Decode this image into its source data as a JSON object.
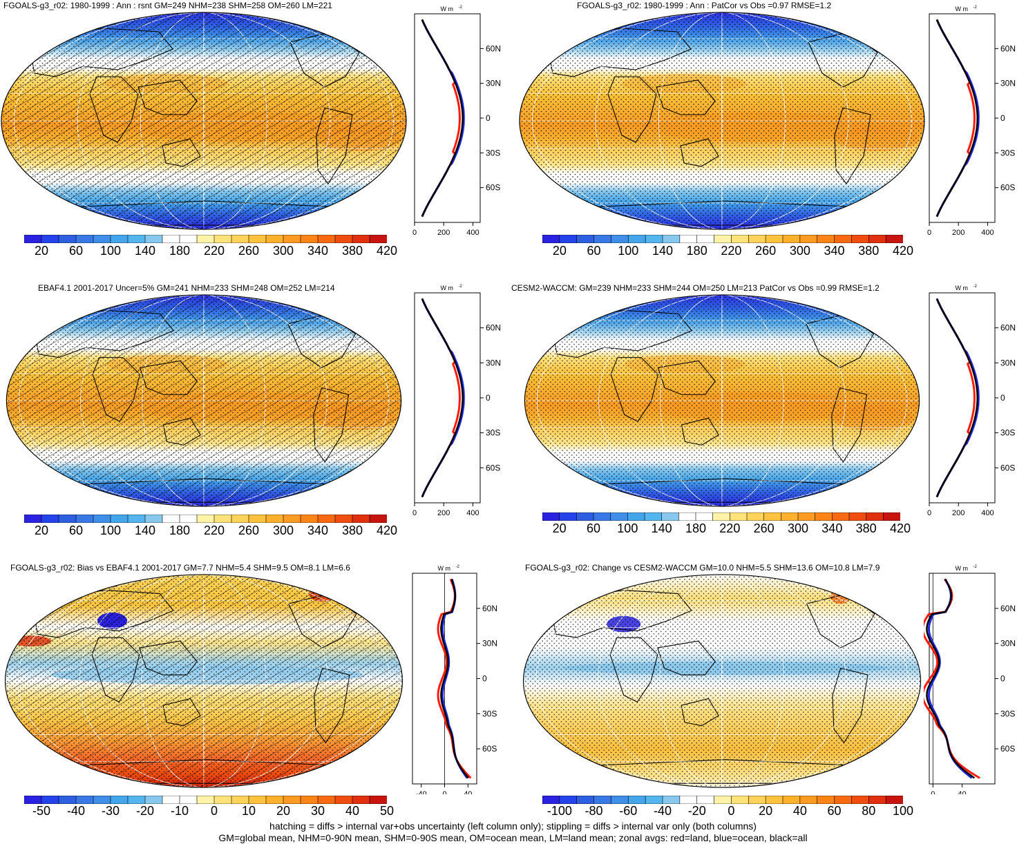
{
  "panels": [
    {
      "title": "FGOALS-g3_r02: 1980-1999 : Ann : rsnt GM=249 NHM=238 SHM=258 OM=260 LM=221",
      "kind": "clim",
      "hatch": true,
      "colorbar": {
        "labels": [
          "20",
          "60",
          "100",
          "140",
          "180",
          "220",
          "260",
          "300",
          "340",
          "380",
          "420"
        ]
      },
      "zonal": {
        "unit": "W m",
        "unit_sup": "-2",
        "xticks": [
          "0",
          "200",
          "400"
        ],
        "yticks": [
          "60N",
          "30N",
          "0",
          "30S",
          "60S"
        ]
      }
    },
    {
      "title": "FGOALS-g3_r02: 1980-1999 : Ann : PatCor vs Obs =0.97 RMSE=1.2",
      "kind": "clim",
      "hatch": false,
      "colorbar": {
        "labels": [
          "20",
          "60",
          "100",
          "140",
          "180",
          "220",
          "260",
          "300",
          "340",
          "380",
          "420"
        ]
      },
      "zonal": {
        "unit": "W m",
        "unit_sup": "-2",
        "xticks": [
          "0",
          "200",
          "400"
        ],
        "yticks": [
          "60N",
          "30N",
          "0",
          "30S",
          "60S"
        ]
      }
    },
    {
      "title": "EBAF4.1 2001-2017 Uncer=5% GM=241 NHM=233 SHM=248 OM=252 LM=214",
      "kind": "clim",
      "hatch": true,
      "colorbar": {
        "labels": [
          "20",
          "60",
          "100",
          "140",
          "180",
          "220",
          "260",
          "300",
          "340",
          "380",
          "420"
        ]
      },
      "zonal": {
        "unit": "W m",
        "unit_sup": "-2",
        "xticks": [
          "0",
          "200",
          "400"
        ],
        "yticks": [
          "60N",
          "30N",
          "0",
          "30S",
          "60S"
        ]
      }
    },
    {
      "title": "CESM2-WACCM: GM=239 NHM=233 SHM=244 OM=250 LM=213 PatCor vs Obs =0.99 RMSE=1.2",
      "kind": "clim",
      "hatch": false,
      "colorbar": {
        "labels": [
          "20",
          "60",
          "100",
          "140",
          "180",
          "220",
          "260",
          "300",
          "340",
          "380",
          "420"
        ]
      },
      "zonal": {
        "unit": "W m",
        "unit_sup": "-2",
        "xticks": [
          "0",
          "200",
          "400"
        ],
        "yticks": [
          "60N",
          "30N",
          "0",
          "30S",
          "60S"
        ]
      }
    },
    {
      "title": "FGOALS-g3_r02: Bias vs EBAF4.1 2001-2017 GM=7.7 NHM=5.4 SHM=9.5 OM=8.1 LM=6.6",
      "kind": "diff",
      "hatch": true,
      "colorbar": {
        "labels": [
          "-50",
          "-40",
          "-30",
          "-20",
          "-10",
          "0",
          "10",
          "20",
          "30",
          "40",
          "50"
        ]
      },
      "zonal": {
        "unit": "W m",
        "unit_sup": "-2",
        "xticks": [
          "-40",
          "0",
          "40"
        ],
        "yticks": [
          "60N",
          "30N",
          "0",
          "30S",
          "60S"
        ]
      }
    },
    {
      "title": "FGOALS-g3_r02: Change vs CESM2-WACCM GM=10.0 NHM=5.5 SHM=13.6 OM=10.8 LM=7.9",
      "kind": "diff",
      "hatch": false,
      "colorbar": {
        "labels": [
          "-100",
          "-80",
          "-60",
          "-40",
          "-20",
          "0",
          "20",
          "40",
          "60",
          "80",
          "100"
        ]
      },
      "zonal": {
        "unit": "W m",
        "unit_sup": "-2",
        "xticks": [
          "0",
          "40"
        ],
        "yticks": [
          "60N",
          "30N",
          "0",
          "30S",
          "60S"
        ]
      }
    }
  ],
  "colors": {
    "clim": [
      "#2a22e0",
      "#2443e8",
      "#2d5fe0",
      "#3a78e6",
      "#3f8fe8",
      "#45a5ea",
      "#55b5ee",
      "#88c8ee",
      "#ffffff",
      "#ffffff",
      "#fff3a8",
      "#ffe27a",
      "#ffd25a",
      "#ffc340",
      "#ffb12e",
      "#ff9a22",
      "#ff8418",
      "#f86a12",
      "#ef4e10",
      "#e0300e",
      "#c8140e"
    ],
    "ocean_line": "#1f2be0",
    "land_line": "#ff1a0a",
    "all_line": "#000000"
  },
  "footer": {
    "line1": "hatching = diffs > internal var+obs uncertainty (left column only); stippling = diffs > internal var only (both columns)",
    "line2": "GM=global mean, NHM=0-90N mean, SHM=0-90S mean, OM=ocean mean, LM=land mean; zonal avgs: red=land, blue=ocean, black=all"
  }
}
